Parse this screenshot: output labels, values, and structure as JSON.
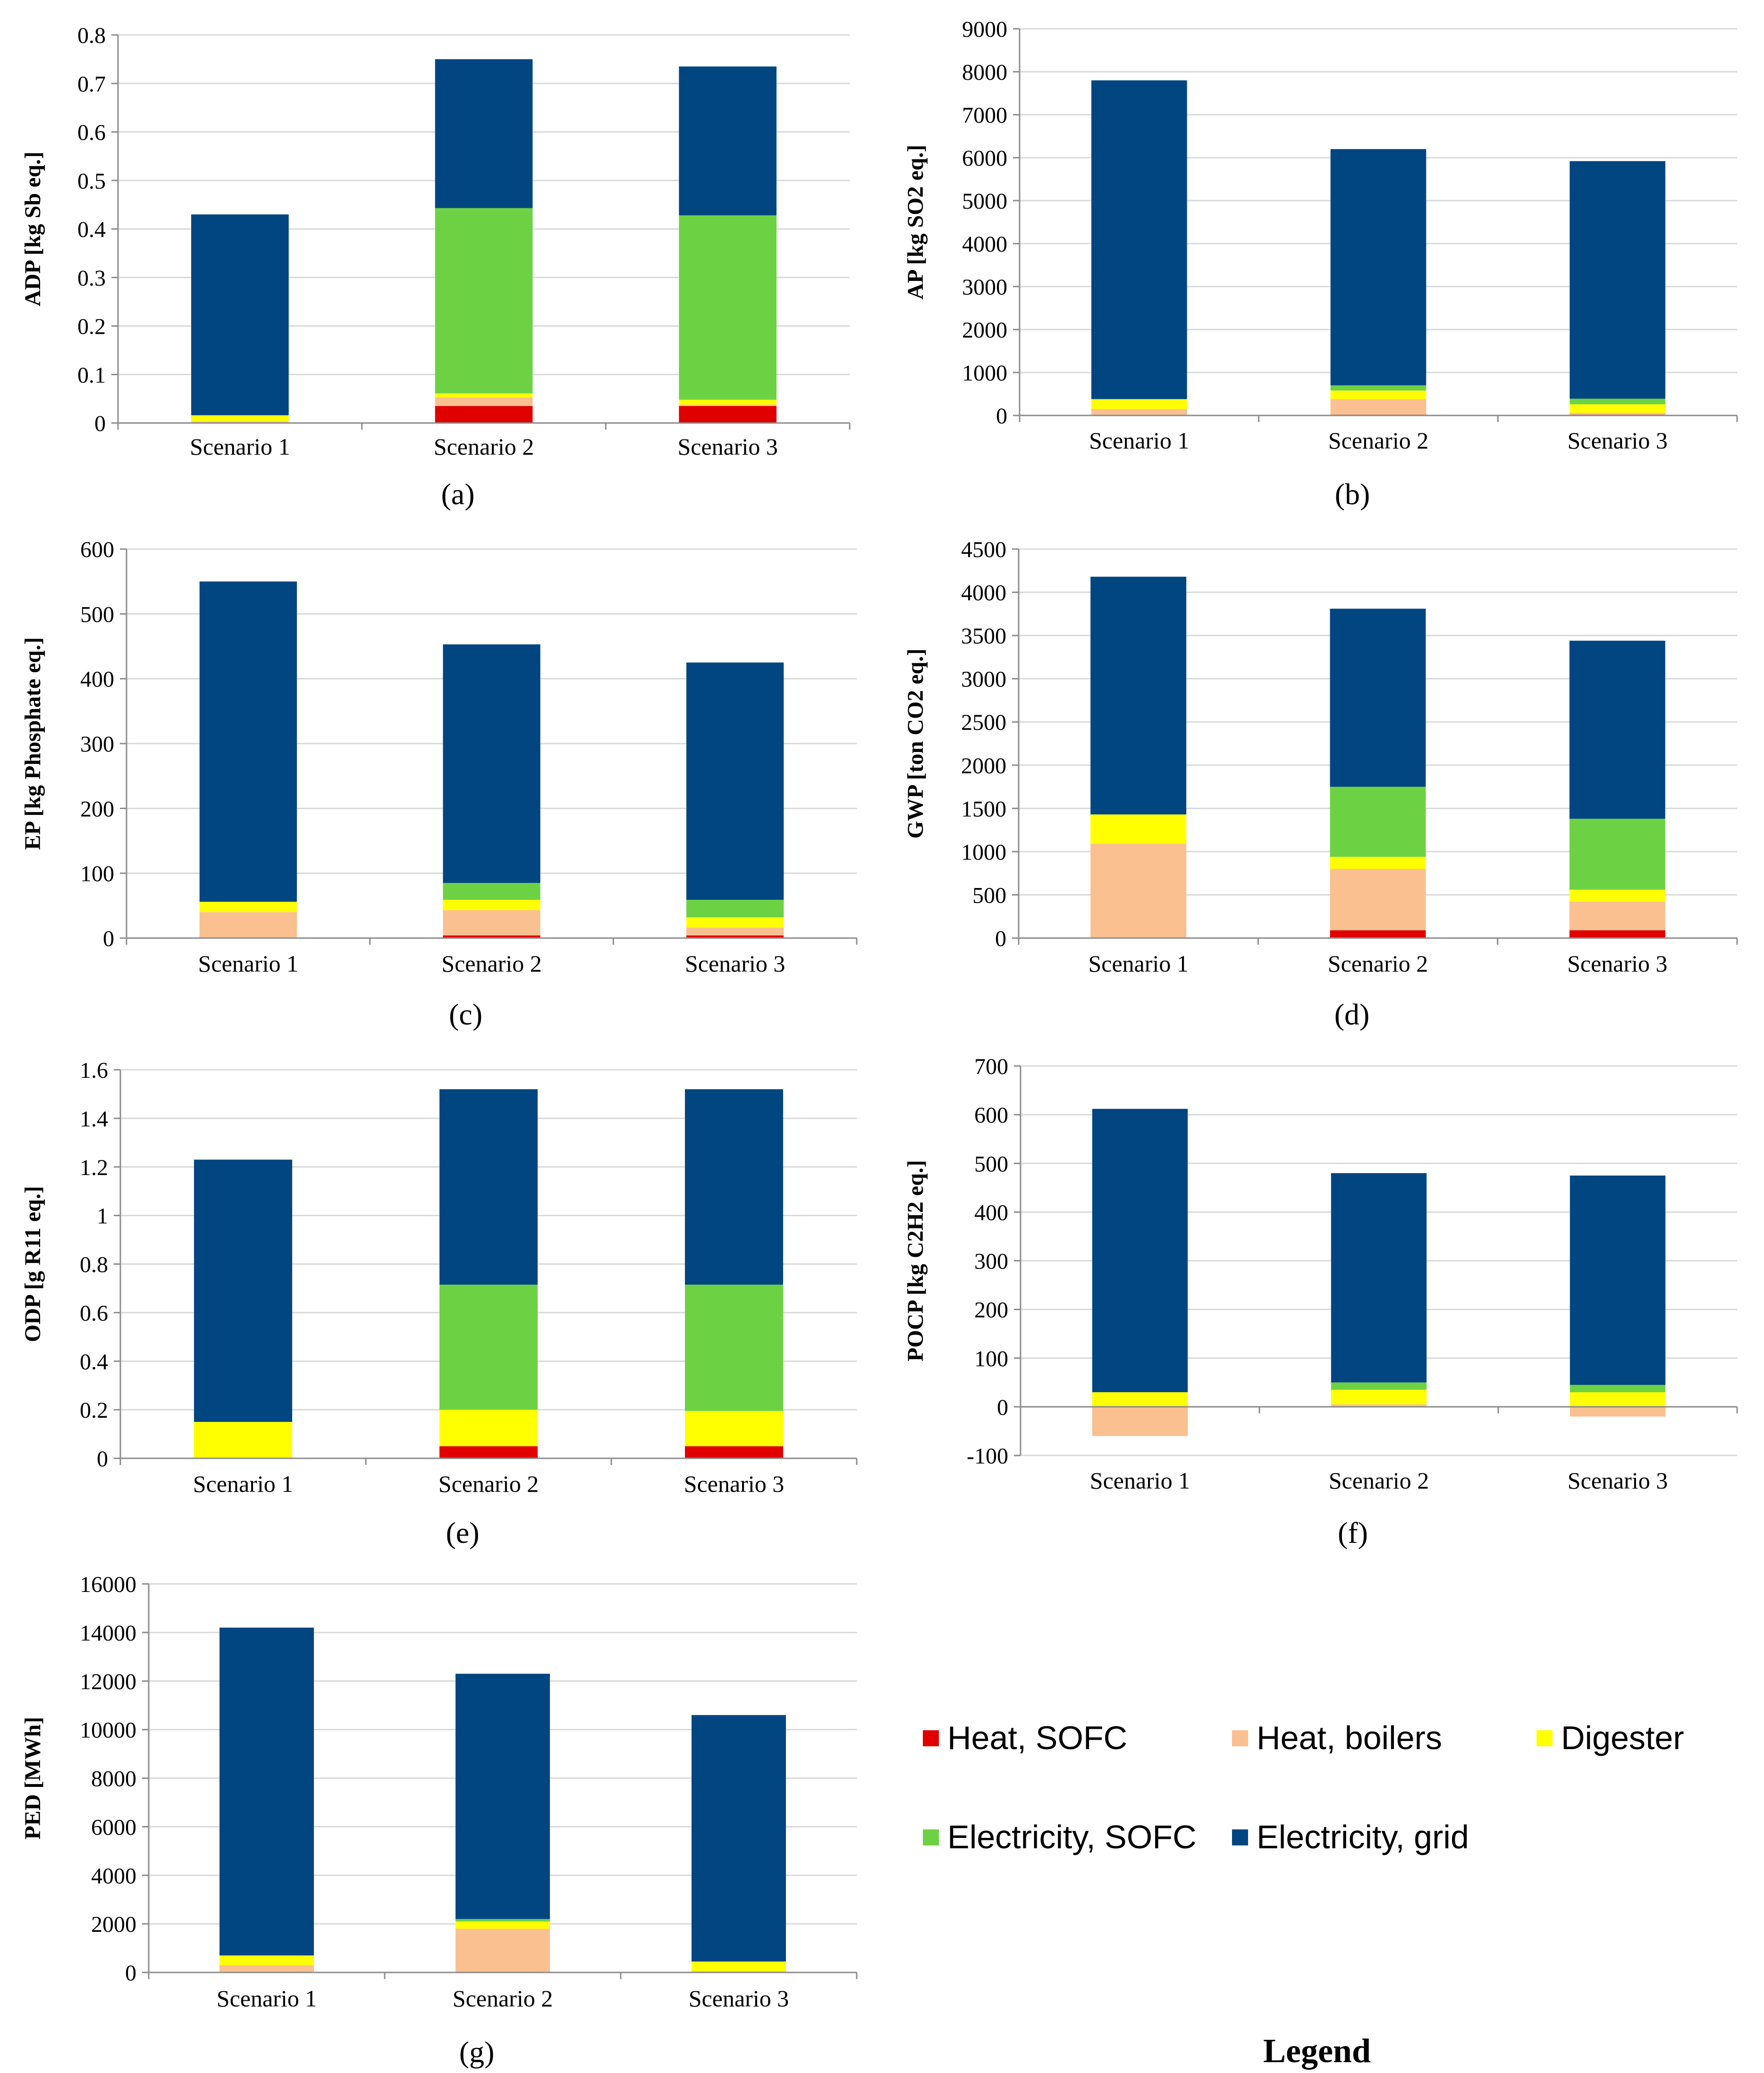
{
  "legend": {
    "title": "Legend",
    "items": [
      {
        "key": "heat_sofc",
        "label": "Heat, SOFC",
        "color": "#e00000"
      },
      {
        "key": "heat_boilers",
        "label": "Heat, boilers",
        "color": "#fac090"
      },
      {
        "key": "digester",
        "label": "Digester",
        "color": "#ffff00"
      },
      {
        "key": "elec_sofc",
        "label": "Electricity, SOFC",
        "color": "#6dd243"
      },
      {
        "key": "elec_grid",
        "label": "Electricity, grid",
        "color": "#024681"
      }
    ]
  },
  "chart_data": [
    {
      "type": "bar",
      "stacked": true,
      "panel": "(a)",
      "ylabel": "ADP [kg Sb eq.]",
      "ylim": [
        0,
        0.8
      ],
      "yticks": [
        0,
        0.1,
        0.2,
        0.3,
        0.4,
        0.5,
        0.6,
        0.7,
        0.8
      ],
      "categories": [
        "Scenario 1",
        "Scenario 2",
        "Scenario 3"
      ],
      "series": [
        {
          "name": "Heat, SOFC",
          "values": [
            0,
            0.035,
            0.035
          ]
        },
        {
          "name": "Heat, boilers",
          "values": [
            0.003,
            0.018,
            0.003
          ]
        },
        {
          "name": "Digester",
          "values": [
            0.013,
            0.008,
            0.01
          ]
        },
        {
          "name": "Electricity, SOFC",
          "values": [
            0,
            0.382,
            0.38
          ]
        },
        {
          "name": "Electricity, grid",
          "values": [
            0.414,
            0.307,
            0.307
          ]
        }
      ]
    },
    {
      "type": "bar",
      "stacked": true,
      "panel": "(b)",
      "ylabel": "AP [kg SO2 eq.]",
      "ylim": [
        0,
        9000
      ],
      "yticks": [
        0,
        1000,
        2000,
        3000,
        4000,
        5000,
        6000,
        7000,
        8000,
        9000
      ],
      "categories": [
        "Scenario 1",
        "Scenario 2",
        "Scenario 3"
      ],
      "series": [
        {
          "name": "Heat, SOFC",
          "values": [
            0,
            20,
            20
          ]
        },
        {
          "name": "Heat, boilers",
          "values": [
            150,
            360,
            40
          ]
        },
        {
          "name": "Digester",
          "values": [
            230,
            200,
            200
          ]
        },
        {
          "name": "Electricity, SOFC",
          "values": [
            0,
            120,
            130
          ]
        },
        {
          "name": "Electricity, grid",
          "values": [
            7420,
            5500,
            5530
          ]
        }
      ]
    },
    {
      "type": "bar",
      "stacked": true,
      "panel": "(c)",
      "ylabel": "EP [kg Phosphate  eq.]",
      "ylim": [
        0,
        600
      ],
      "yticks": [
        0,
        100,
        200,
        300,
        400,
        500,
        600
      ],
      "categories": [
        "Scenario 1",
        "Scenario 2",
        "Scenario 3"
      ],
      "series": [
        {
          "name": "Heat, SOFC",
          "values": [
            0,
            4,
            4
          ]
        },
        {
          "name": "Heat, boilers",
          "values": [
            40,
            39,
            12
          ]
        },
        {
          "name": "Digester",
          "values": [
            16,
            16,
            16
          ]
        },
        {
          "name": "Electricity, SOFC",
          "values": [
            0,
            26,
            27
          ]
        },
        {
          "name": "Electricity, grid",
          "values": [
            494,
            368,
            366
          ]
        }
      ]
    },
    {
      "type": "bar",
      "stacked": true,
      "panel": "(d)",
      "ylabel": "GWP [ton  CO2  eq.]",
      "ylim": [
        0,
        4500
      ],
      "yticks": [
        0,
        500,
        1000,
        1500,
        2000,
        2500,
        3000,
        3500,
        4000,
        4500
      ],
      "categories": [
        "Scenario 1",
        "Scenario 2",
        "Scenario 3"
      ],
      "series": [
        {
          "name": "Heat, SOFC",
          "values": [
            0,
            90,
            90
          ]
        },
        {
          "name": "Heat, boilers",
          "values": [
            1090,
            710,
            330
          ]
        },
        {
          "name": "Digester",
          "values": [
            340,
            140,
            140
          ]
        },
        {
          "name": "Electricity, SOFC",
          "values": [
            0,
            810,
            820
          ]
        },
        {
          "name": "Electricity, grid",
          "values": [
            2750,
            2060,
            2060
          ]
        }
      ]
    },
    {
      "type": "bar",
      "stacked": true,
      "panel": "(e)",
      "ylabel": "ODP [g R11 eq.]",
      "ylim": [
        0,
        1.6
      ],
      "yticks": [
        0,
        0.2,
        0.4,
        0.6,
        0.8,
        1,
        1.2,
        1.4,
        1.6
      ],
      "categories": [
        "Scenario 1",
        "Scenario 2",
        "Scenario 3"
      ],
      "series": [
        {
          "name": "Heat, SOFC",
          "values": [
            0,
            0.05,
            0.05
          ]
        },
        {
          "name": "Heat, boilers",
          "values": [
            0,
            0,
            0
          ]
        },
        {
          "name": "Digester",
          "values": [
            0.15,
            0.15,
            0.145
          ]
        },
        {
          "name": "Electricity, SOFC",
          "values": [
            0,
            0.515,
            0.52
          ]
        },
        {
          "name": "Electricity, grid",
          "values": [
            1.08,
            0.805,
            0.805
          ]
        }
      ]
    },
    {
      "type": "bar",
      "stacked": true,
      "panel": "(f)",
      "ylabel": "POCP [kg C2H2 eq.]",
      "ylim": [
        -100,
        700
      ],
      "yticks": [
        -100,
        0,
        100,
        200,
        300,
        400,
        500,
        600,
        700
      ],
      "categories": [
        "Scenario 1",
        "Scenario 2",
        "Scenario 3"
      ],
      "series": [
        {
          "name": "Heat, SOFC",
          "values": [
            0,
            0,
            0
          ]
        },
        {
          "name": "Heat, boilers",
          "values": [
            -60,
            5,
            -20
          ]
        },
        {
          "name": "Digester",
          "values": [
            30,
            30,
            30
          ]
        },
        {
          "name": "Electricity, SOFC",
          "values": [
            0,
            15,
            15
          ]
        },
        {
          "name": "Electricity, grid",
          "values": [
            582,
            430,
            430
          ]
        }
      ]
    },
    {
      "type": "bar",
      "stacked": true,
      "panel": "(g)",
      "ylabel": "PED [MWh]",
      "ylim": [
        0,
        16000
      ],
      "yticks": [
        0,
        2000,
        4000,
        6000,
        8000,
        10000,
        12000,
        14000,
        16000
      ],
      "categories": [
        "Scenario 1",
        "Scenario 2",
        "Scenario 3"
      ],
      "series": [
        {
          "name": "Heat, SOFC",
          "values": [
            0,
            0,
            0
          ]
        },
        {
          "name": "Heat, boilers",
          "values": [
            300,
            1800,
            50
          ]
        },
        {
          "name": "Digester",
          "values": [
            400,
            300,
            400
          ]
        },
        {
          "name": "Electricity, SOFC",
          "values": [
            0,
            100,
            0
          ]
        },
        {
          "name": "Electricity, grid",
          "values": [
            13500,
            10100,
            10150
          ]
        }
      ]
    }
  ]
}
